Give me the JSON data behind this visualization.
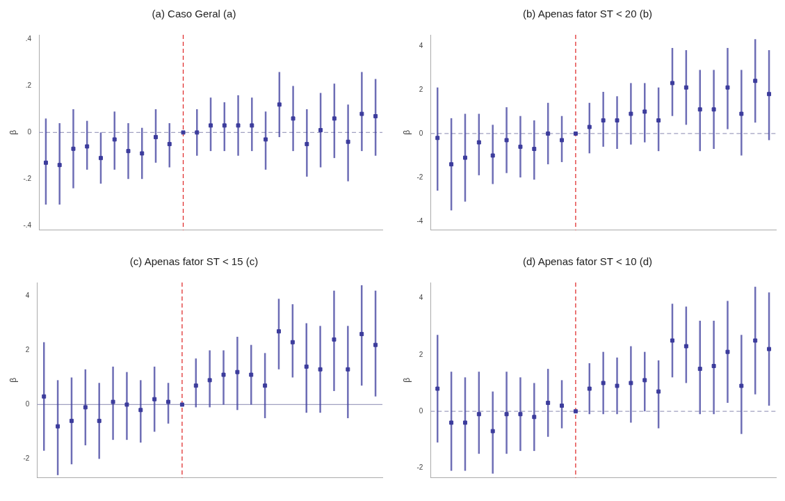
{
  "chart_data": [
    {
      "type": "scatter",
      "title": "(a) Caso Geral (a)",
      "ylabel": "β",
      "categories": [
        null,
        null,
        null,
        null,
        null,
        null,
        null,
        null,
        null,
        null,
        null,
        null,
        null,
        null,
        null,
        null,
        null,
        null,
        null,
        null,
        null,
        null,
        null,
        null,
        null
      ],
      "series": [
        {
          "color": "#3c3c9c",
          "values": [
            -0.13,
            -0.14,
            -0.07,
            -0.06,
            -0.11,
            -0.03,
            -0.08,
            -0.09,
            -0.02,
            -0.05,
            0,
            0,
            0.03,
            0.03,
            0.03,
            0.03,
            -0.03,
            0.12,
            0.06,
            -0.05,
            0.01,
            0.06,
            -0.04,
            0.08,
            0.07
          ],
          "errors": [
            [
              -0.31,
              0.06
            ],
            [
              -0.31,
              0.04
            ],
            [
              -0.24,
              0.1
            ],
            [
              -0.16,
              0.05
            ],
            [
              -0.22,
              0
            ],
            [
              -0.16,
              0.09
            ],
            [
              -0.2,
              0.04
            ],
            [
              -0.2,
              0.02
            ],
            [
              -0.13,
              0.1
            ],
            [
              -0.15,
              0.04
            ],
            null,
            [
              -0.1,
              0.1
            ],
            [
              -0.08,
              0.15
            ],
            [
              -0.08,
              0.13
            ],
            [
              -0.1,
              0.16
            ],
            [
              -0.08,
              0.15
            ],
            [
              -0.16,
              0.09
            ],
            [
              -0.02,
              0.26
            ],
            [
              -0.08,
              0.2
            ],
            [
              -0.19,
              0.1
            ],
            [
              -0.15,
              0.17
            ],
            [
              -0.11,
              0.21
            ],
            [
              -0.21,
              0.12
            ],
            [
              -0.08,
              0.26
            ],
            [
              -0.1,
              0.23
            ]
          ]
        }
      ],
      "ylim": [
        -0.42,
        0.42
      ],
      "yticks": [
        {
          "value": -0.4,
          "label": "-.4"
        },
        {
          "value": -0.2,
          "label": "-.2"
        },
        0,
        {
          "value": 0.2,
          "label": ".2"
        },
        {
          "value": 0.4,
          "label": ".4"
        }
      ],
      "ref_lines": [
        {
          "axis": "y",
          "value": 0,
          "color": "#a0a0c0",
          "line_style": "dashed"
        }
      ],
      "legend": false,
      "marker": "square"
    },
    {
      "type": "scatter",
      "title": "(b) Apenas fator ST < 20 (b)",
      "ylabel": "β",
      "categories": [
        null,
        null,
        null,
        null,
        null,
        null,
        null,
        null,
        null,
        null,
        null,
        null,
        null,
        null,
        null,
        null,
        null,
        null,
        null,
        null,
        null,
        null,
        null,
        null,
        null
      ],
      "series": [
        {
          "color": "#3c3c9c",
          "values": [
            -0.2,
            -1.4,
            -1.1,
            -0.4,
            -1,
            -0.3,
            -0.6,
            -0.7,
            0,
            -0.3,
            0,
            0.3,
            0.6,
            0.6,
            0.9,
            1,
            0.6,
            2.3,
            2.1,
            1.1,
            1.1,
            2.1,
            0.9,
            2.4,
            1.8
          ],
          "errors": [
            [
              -2.6,
              2.1
            ],
            [
              -3.5,
              0.7
            ],
            [
              -3.1,
              0.9
            ],
            [
              -1.9,
              0.9
            ],
            [
              -2.3,
              0.4
            ],
            [
              -1.8,
              1.2
            ],
            [
              -2,
              0.8
            ],
            [
              -2.1,
              0.6
            ],
            [
              -1.4,
              1.4
            ],
            [
              -1.3,
              0.8
            ],
            null,
            [
              -0.9,
              1.4
            ],
            [
              -0.6,
              1.9
            ],
            [
              -0.7,
              1.7
            ],
            [
              -0.5,
              2.3
            ],
            [
              -0.4,
              2.3
            ],
            [
              -0.8,
              2.1
            ],
            [
              0.8,
              3.9
            ],
            [
              0.4,
              3.8
            ],
            [
              -0.8,
              2.9
            ],
            [
              -0.7,
              2.9
            ],
            [
              0.2,
              3.9
            ],
            [
              -1,
              2.9
            ],
            [
              0.5,
              4.3
            ],
            [
              -0.3,
              3.8
            ]
          ]
        }
      ],
      "ylim": [
        -4.4,
        4.5
      ],
      "yticks": [
        -4,
        -2,
        0,
        2,
        4
      ],
      "ref_lines": [
        {
          "axis": "y",
          "value": 0,
          "color": "#a0a0c0",
          "line_style": "dashed"
        }
      ],
      "legend": false,
      "marker": "square"
    },
    {
      "type": "scatter",
      "title": "(c) Apenas fator ST < 15 (c)",
      "ylabel": "β",
      "categories": [
        null,
        null,
        null,
        null,
        null,
        null,
        null,
        null,
        null,
        null,
        null,
        null,
        null,
        null,
        null,
        null,
        null,
        null,
        null,
        null,
        null,
        null,
        null,
        null,
        null
      ],
      "series": [
        {
          "color": "#3c3c9c",
          "values": [
            0.3,
            -0.8,
            -0.6,
            -0.1,
            -0.6,
            0.1,
            0,
            -0.2,
            0.2,
            0.1,
            0,
            0.7,
            0.9,
            1.1,
            1.2,
            1.1,
            0.7,
            2.7,
            2.3,
            1.4,
            1.3,
            2.4,
            1.3,
            2.6,
            2.2
          ],
          "errors": [
            [
              -1.7,
              2.3
            ],
            [
              -2.6,
              0.9
            ],
            [
              -2.2,
              1
            ],
            [
              -1.5,
              1.3
            ],
            [
              -2,
              0.8
            ],
            [
              -1.3,
              1.4
            ],
            [
              -1.3,
              1.2
            ],
            [
              -1.4,
              0.9
            ],
            [
              -1,
              1.4
            ],
            [
              -0.7,
              0.8
            ],
            null,
            [
              -0.1,
              1.7
            ],
            [
              -0.1,
              2
            ],
            [
              0,
              2
            ],
            [
              -0.2,
              2.5
            ],
            [
              0,
              2.2
            ],
            [
              -0.5,
              1.9
            ],
            [
              1.3,
              3.9
            ],
            [
              1,
              3.7
            ],
            [
              -0.3,
              3
            ],
            [
              -0.3,
              2.9
            ],
            [
              0.5,
              4.2
            ],
            [
              -0.5,
              2.9
            ],
            [
              0.7,
              4.4
            ],
            [
              0.3,
              4.2
            ]
          ]
        }
      ],
      "ylim": [
        -2.7,
        4.5
      ],
      "yticks": [
        -2,
        0,
        2,
        4
      ],
      "ref_lines": [
        {
          "axis": "y",
          "value": 0,
          "color": "#a0a0c0",
          "line_style": "solid"
        }
      ],
      "legend": false,
      "marker": "square"
    },
    {
      "type": "scatter",
      "title": "(d) Apenas fator ST < 10 (d)",
      "ylabel": "β",
      "categories": [
        null,
        null,
        null,
        null,
        null,
        null,
        null,
        null,
        null,
        null,
        null,
        null,
        null,
        null,
        null,
        null,
        null,
        null,
        null,
        null,
        null,
        null,
        null,
        null,
        null
      ],
      "series": [
        {
          "color": "#3c3c9c",
          "values": [
            0.8,
            -0.4,
            -0.4,
            -0.1,
            -0.7,
            -0.1,
            -0.1,
            -0.2,
            0.3,
            0.2,
            0,
            0.8,
            1,
            0.9,
            1,
            1.1,
            0.7,
            2.5,
            2.3,
            1.5,
            1.6,
            2.1,
            0.9,
            2.5,
            2.2
          ],
          "errors": [
            [
              -1.1,
              2.7
            ],
            [
              -2.1,
              1.4
            ],
            [
              -2.1,
              1.2
            ],
            [
              -1.5,
              1.4
            ],
            [
              -2.2,
              0.7
            ],
            [
              -1.5,
              1.4
            ],
            [
              -1.4,
              1.2
            ],
            [
              -1.4,
              1
            ],
            [
              -0.9,
              1.5
            ],
            [
              -0.6,
              1.1
            ],
            null,
            [
              -0.1,
              1.7
            ],
            [
              -0.1,
              2.1
            ],
            [
              -0.1,
              1.9
            ],
            [
              -0.4,
              2.3
            ],
            [
              0,
              2.1
            ],
            [
              -0.6,
              1.8
            ],
            [
              1.2,
              3.8
            ],
            [
              1,
              3.7
            ],
            [
              -0.1,
              3.2
            ],
            [
              -0.1,
              3.2
            ],
            [
              0.3,
              3.9
            ],
            [
              -0.8,
              2.7
            ],
            [
              0.6,
              4.4
            ],
            [
              0.2,
              4.2
            ]
          ]
        }
      ],
      "ylim": [
        -2.35,
        4.55
      ],
      "yticks": [
        -2,
        0,
        2,
        4
      ],
      "ref_lines": [
        {
          "axis": "y",
          "value": 0,
          "color": "#a0a0c0",
          "line_style": "dashed"
        }
      ],
      "legend": false,
      "marker": "square"
    }
  ]
}
